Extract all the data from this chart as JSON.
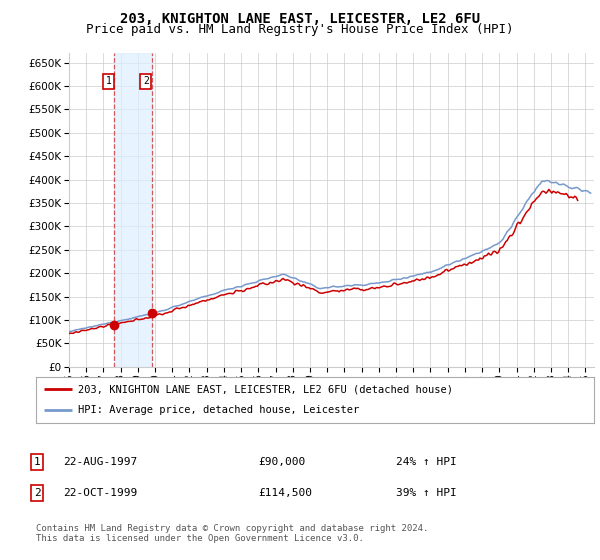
{
  "title": "203, KNIGHTON LANE EAST, LEICESTER, LE2 6FU",
  "subtitle": "Price paid vs. HM Land Registry's House Price Index (HPI)",
  "legend_line1": "203, KNIGHTON LANE EAST, LEICESTER, LE2 6FU (detached house)",
  "legend_line2": "HPI: Average price, detached house, Leicester",
  "sale1_date": "22-AUG-1997",
  "sale1_price": "£90,000",
  "sale1_hpi": "24% ↑ HPI",
  "sale1_year": 1997.64,
  "sale1_value": 90000,
  "sale2_date": "22-OCT-1999",
  "sale2_price": "£114,500",
  "sale2_hpi": "39% ↑ HPI",
  "sale2_year": 1999.81,
  "sale2_value": 114500,
  "footer": "Contains HM Land Registry data © Crown copyright and database right 2024.\nThis data is licensed under the Open Government Licence v3.0.",
  "ylim_max": 670000,
  "xlim_start": 1995.0,
  "xlim_end": 2025.5,
  "hpi_color": "#7799cc",
  "price_color": "#cc0000",
  "marker_color": "#cc0000",
  "vline_color": "#cc3333",
  "shade_color": "#ddeeff",
  "background_color": "#ffffff",
  "grid_color": "#cccccc",
  "title_fontsize": 10,
  "subtitle_fontsize": 9
}
